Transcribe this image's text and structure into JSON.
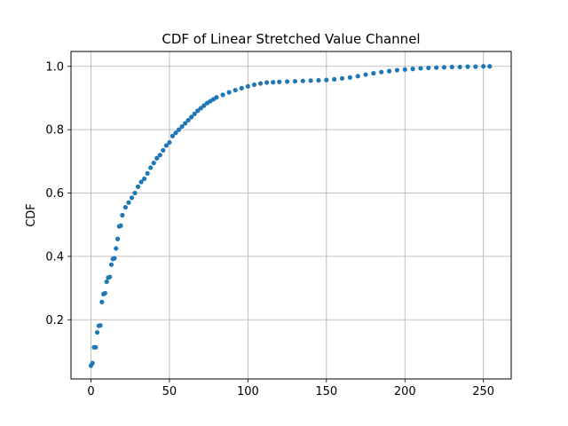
{
  "chart_data": {
    "type": "scatter",
    "title": "CDF of Linear Stretched Value Channel",
    "xlabel": "",
    "ylabel": "CDF",
    "xlim": [
      -12.7,
      267.7
    ],
    "ylim": [
      0.013,
      1.047
    ],
    "x_ticks": [
      0,
      50,
      100,
      150,
      200,
      250
    ],
    "y_ticks": [
      0.2,
      0.4,
      0.6,
      0.8,
      1.0
    ],
    "x_tick_labels": [
      "0",
      "50",
      "100",
      "150",
      "200",
      "250"
    ],
    "y_tick_labels": [
      "0.2",
      "0.4",
      "0.6",
      "0.8",
      "1.0"
    ],
    "grid": true,
    "marker_color": "#1f77b4",
    "series": [
      {
        "name": "",
        "x": [
          0,
          1,
          2,
          3,
          4,
          5,
          6,
          7,
          8,
          9,
          10,
          11,
          12,
          13,
          14,
          15,
          16,
          17,
          18,
          19,
          20,
          22,
          24,
          26,
          28,
          30,
          32,
          34,
          36,
          38,
          40,
          42,
          44,
          46,
          48,
          50,
          52,
          54,
          56,
          58,
          60,
          62,
          64,
          66,
          68,
          70,
          72,
          74,
          76,
          78,
          80,
          84,
          88,
          92,
          96,
          100,
          104,
          108,
          112,
          116,
          120,
          125,
          130,
          135,
          140,
          145,
          150,
          155,
          160,
          165,
          170,
          175,
          180,
          185,
          190,
          195,
          200,
          205,
          210,
          215,
          220,
          225,
          230,
          235,
          240,
          245,
          250,
          254
        ],
        "y": [
          0.055,
          0.063,
          0.113,
          0.113,
          0.16,
          0.181,
          0.182,
          0.256,
          0.281,
          0.284,
          0.32,
          0.333,
          0.335,
          0.374,
          0.392,
          0.394,
          0.425,
          0.455,
          0.495,
          0.497,
          0.53,
          0.555,
          0.57,
          0.585,
          0.6,
          0.62,
          0.635,
          0.645,
          0.662,
          0.68,
          0.695,
          0.71,
          0.72,
          0.735,
          0.75,
          0.76,
          0.78,
          0.79,
          0.8,
          0.81,
          0.82,
          0.83,
          0.84,
          0.85,
          0.86,
          0.868,
          0.876,
          0.884,
          0.89,
          0.896,
          0.902,
          0.91,
          0.918,
          0.925,
          0.931,
          0.937,
          0.942,
          0.946,
          0.949,
          0.95,
          0.951,
          0.952,
          0.953,
          0.954,
          0.955,
          0.956,
          0.957,
          0.959,
          0.962,
          0.965,
          0.969,
          0.974,
          0.978,
          0.982,
          0.985,
          0.988,
          0.99,
          0.992,
          0.994,
          0.995,
          0.996,
          0.997,
          0.998,
          0.998,
          0.999,
          0.999,
          1.0,
          1.0
        ]
      }
    ]
  }
}
